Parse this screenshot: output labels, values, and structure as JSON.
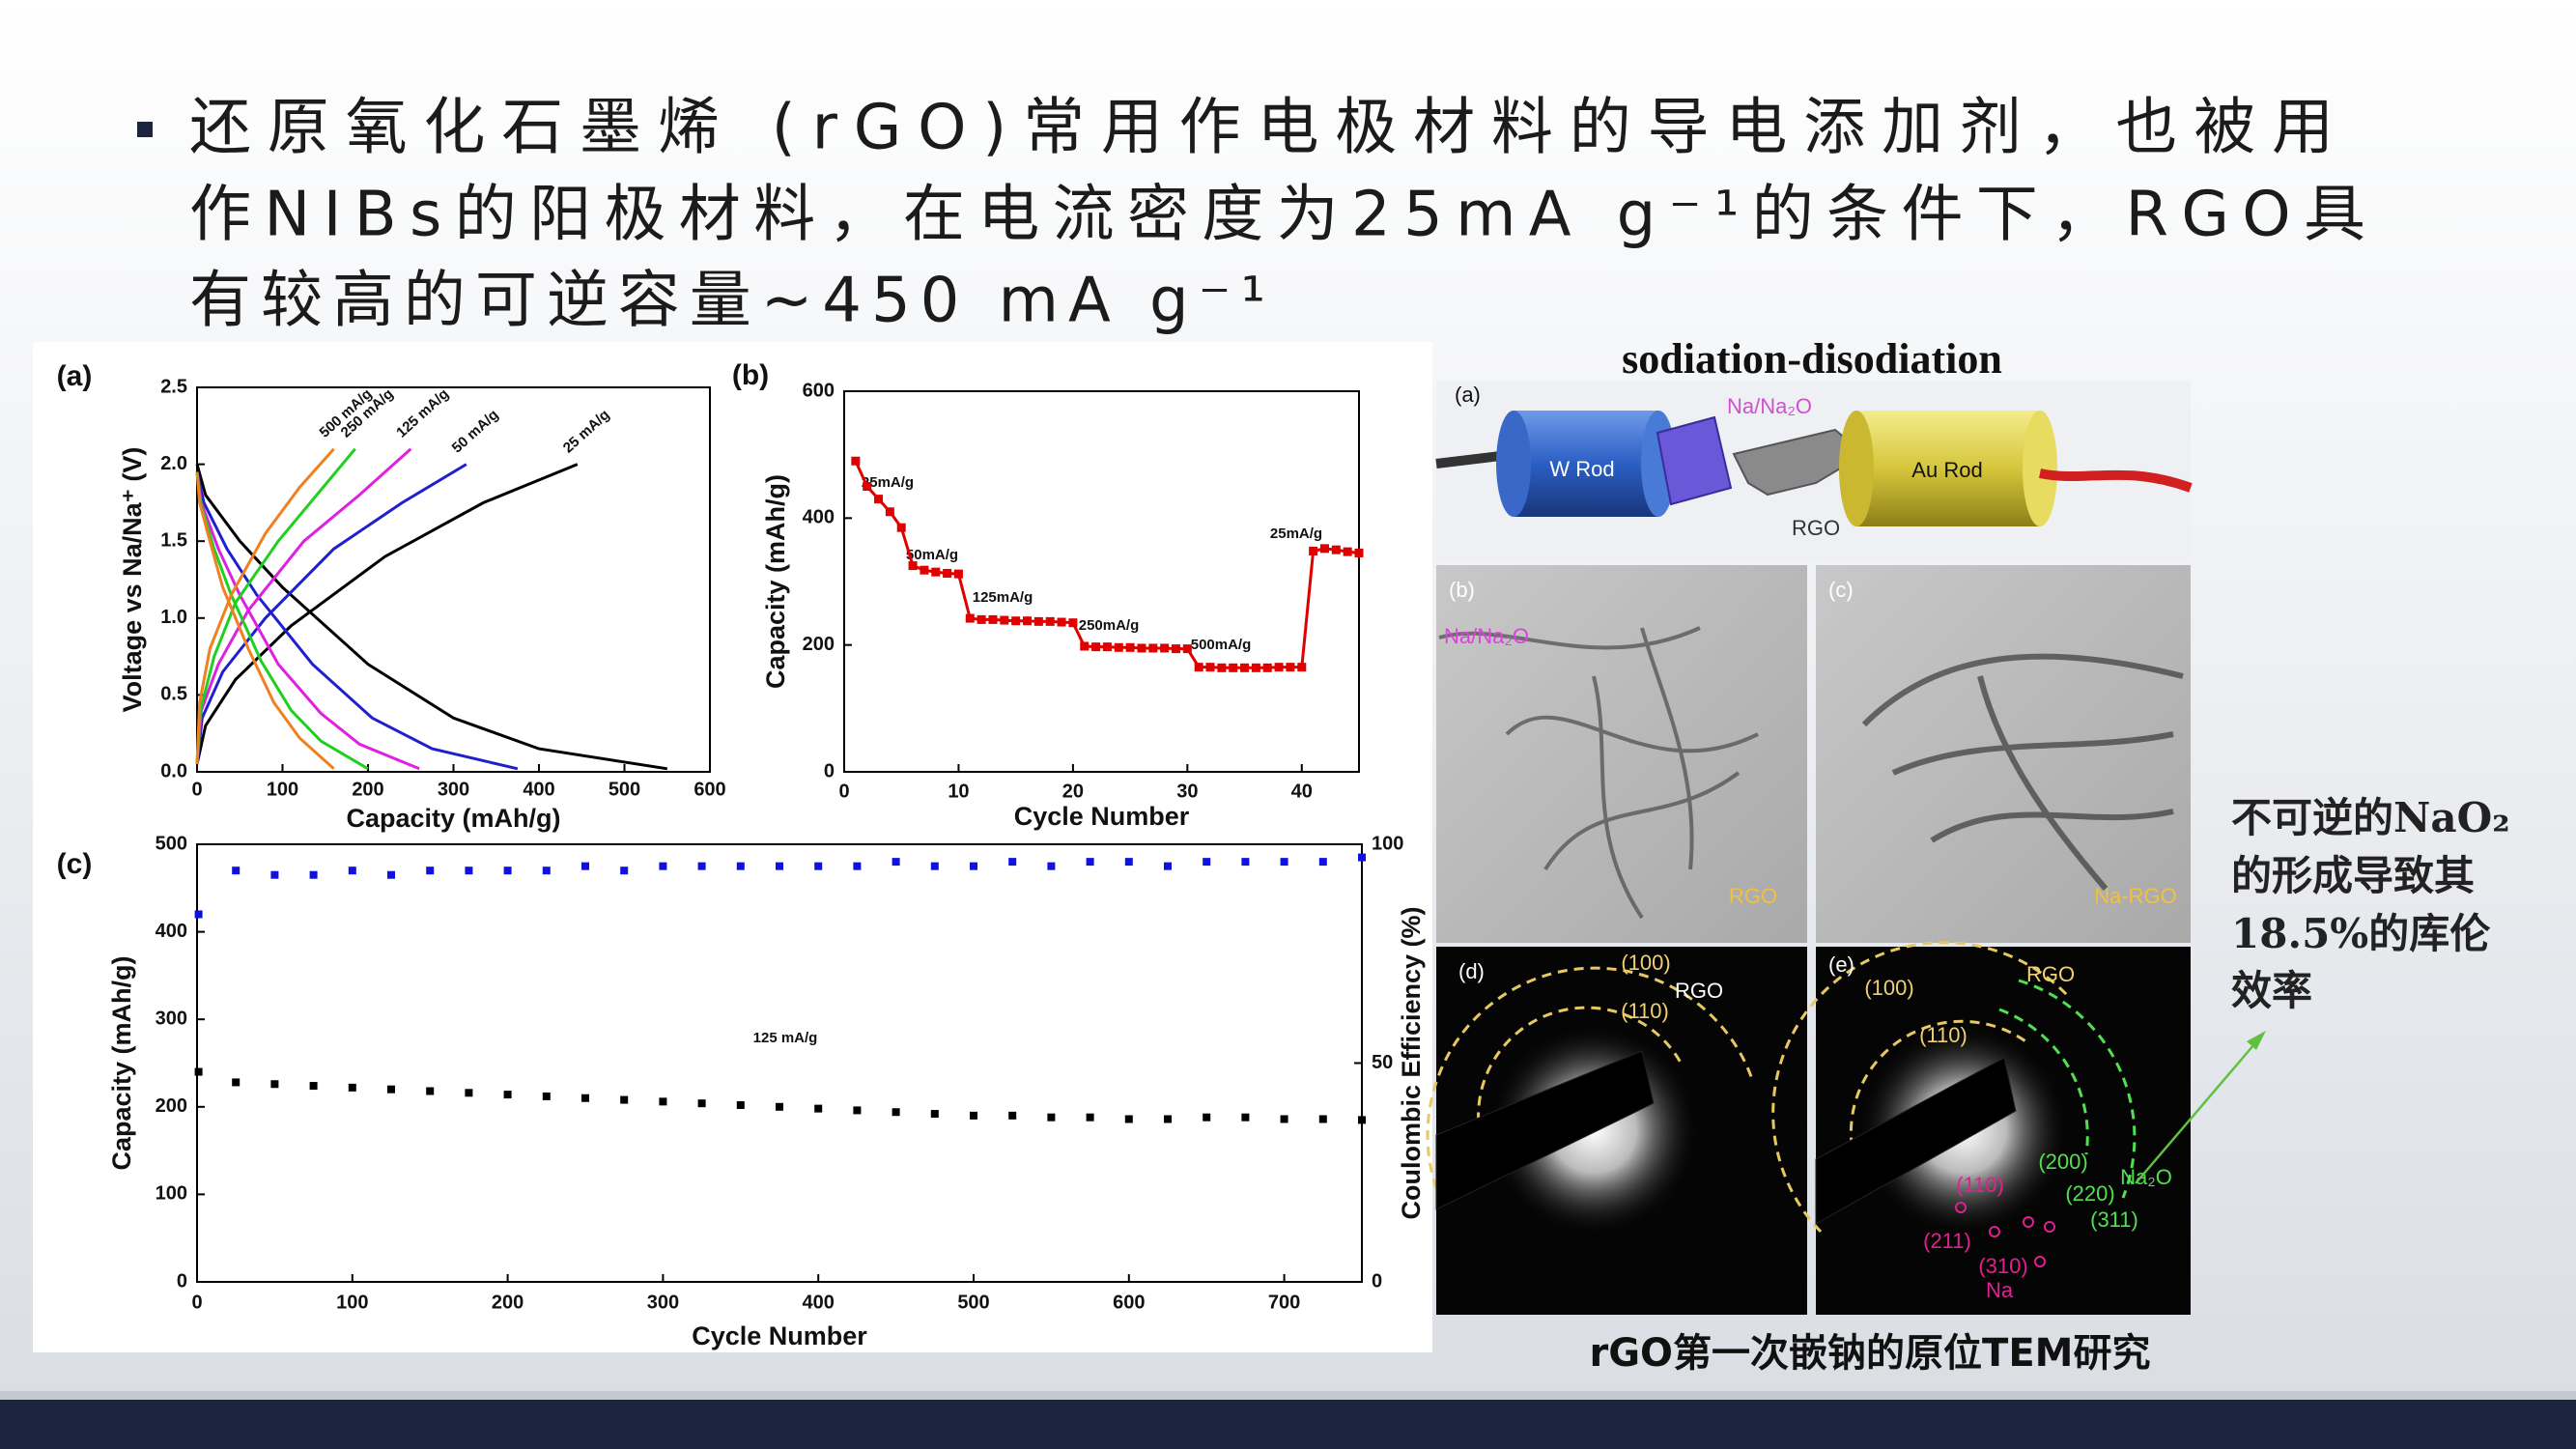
{
  "slide": {
    "bullet_lines": [
      "还原氧化石墨烯 (rGO)常用作电极材料的导电添加剂，也被用",
      "作NIBs的阳极材料，在电流密度为25mA g⁻¹的条件下，RGO具",
      "有较高的可逆容量~450 mA g⁻¹"
    ],
    "note_lines": [
      "不可逆的NaO₂",
      "的形成导致其",
      "18.5%的库伦",
      "效率"
    ]
  },
  "tem_figure": {
    "title": "sodiation-disodiation",
    "caption": "rGO第一次嵌钠的原位TEM研究",
    "panels": [
      {
        "label": "(a)",
        "texts": [
          "Na/Na₂O",
          "W Rod",
          "Au Rod",
          "RGO"
        ]
      },
      {
        "label": "(b)",
        "texts": [
          "Na/Na₂O",
          "RGO"
        ]
      },
      {
        "label": "(c)",
        "texts": [
          "Na-RGO"
        ]
      },
      {
        "label": "(d)",
        "texts": [
          "(100)",
          "RGO",
          "(110)"
        ]
      },
      {
        "label": "(e)",
        "texts": [
          "(100)",
          "RGO",
          "(110)",
          "(200)",
          "(220)",
          "Na₂O",
          "(311)",
          "(110)",
          "(211)",
          "(310)",
          "Na"
        ]
      }
    ]
  },
  "chart_data": [
    {
      "type": "line",
      "panel_label": "(a)",
      "xlabel": "Capacity (mAh/g)",
      "ylabel": "Voltage vs Na/Na⁺ (V)",
      "xlim": [
        0,
        600
      ],
      "xticks": [
        0,
        100,
        200,
        300,
        400,
        500,
        600
      ],
      "ylim": [
        0,
        2.5
      ],
      "yticks": [
        {
          "value": 0,
          "label": "0.0"
        },
        {
          "value": 0.5,
          "label": "0.5"
        },
        {
          "value": 1,
          "label": "1.0"
        },
        {
          "value": 1.5,
          "label": "1.5"
        },
        {
          "value": 2,
          "label": "2.0"
        },
        {
          "value": 2.5,
          "label": "2.5"
        }
      ],
      "series": [
        {
          "name": "25 mA/g",
          "color": "#000000",
          "x": [
            0,
            10,
            50,
            100,
            200,
            300,
            400,
            550,
            null,
            0,
            10,
            45,
            110,
            220,
            335,
            445
          ],
          "values": [
            2.0,
            1.8,
            1.5,
            1.2,
            0.7,
            0.35,
            0.15,
            0.02,
            null,
            0.05,
            0.3,
            0.6,
            0.95,
            1.4,
            1.75,
            2.0
          ]
        },
        {
          "name": "50 mA/g",
          "color": "#1f1fd0",
          "x": [
            0,
            8,
            35,
            70,
            135,
            205,
            275,
            375,
            null,
            0,
            6,
            30,
            80,
            160,
            240,
            315
          ],
          "values": [
            1.95,
            1.75,
            1.45,
            1.15,
            0.7,
            0.35,
            0.15,
            0.02,
            null,
            0.05,
            0.35,
            0.65,
            1.0,
            1.45,
            1.75,
            2.0
          ]
        },
        {
          "name": "125 mA/g",
          "color": "#e020e0",
          "x": [
            0,
            5,
            25,
            50,
            95,
            145,
            190,
            260,
            null,
            0,
            5,
            25,
            60,
            125,
            190,
            250
          ],
          "values": [
            1.95,
            1.75,
            1.45,
            1.15,
            0.7,
            0.38,
            0.18,
            0.02,
            null,
            0.05,
            0.4,
            0.7,
            1.05,
            1.5,
            1.8,
            2.1
          ]
        },
        {
          "name": "250 mA/g",
          "color": "#20d020",
          "x": [
            0,
            4,
            20,
            40,
            75,
            110,
            145,
            200,
            null,
            0,
            4,
            20,
            45,
            95,
            140,
            185
          ],
          "values": [
            1.95,
            1.75,
            1.45,
            1.15,
            0.72,
            0.4,
            0.2,
            0.02,
            null,
            0.05,
            0.4,
            0.75,
            1.1,
            1.5,
            1.8,
            2.1
          ]
        },
        {
          "name": "500 mA/g",
          "color": "#f08020",
          "x": [
            0,
            3,
            15,
            30,
            60,
            90,
            120,
            160,
            null,
            0,
            3,
            15,
            40,
            80,
            120,
            160
          ],
          "values": [
            1.95,
            1.75,
            1.5,
            1.2,
            0.8,
            0.45,
            0.22,
            0.02,
            null,
            0.05,
            0.45,
            0.8,
            1.15,
            1.55,
            1.85,
            2.1
          ]
        }
      ]
    },
    {
      "type": "line",
      "markers": true,
      "panel_label": "(b)",
      "xlabel": "Cycle Number",
      "ylabel": "Capacity (mAh/g)",
      "xlim": [
        0,
        45
      ],
      "xticks": [
        0,
        10,
        20,
        30,
        40
      ],
      "ylim": [
        0,
        600
      ],
      "yticks": [
        0,
        200,
        400,
        600
      ],
      "annotations": [
        "25mA/g",
        "50mA/g",
        "125mA/g",
        "250mA/g",
        "500mA/g",
        "25mA/g"
      ],
      "x": [
        1,
        2,
        3,
        4,
        5,
        6,
        7,
        8,
        9,
        10,
        11,
        12,
        13,
        14,
        15,
        16,
        17,
        18,
        19,
        20,
        21,
        22,
        23,
        24,
        25,
        26,
        27,
        28,
        29,
        30,
        31,
        32,
        33,
        34,
        35,
        36,
        37,
        38,
        39,
        40,
        41,
        42,
        43,
        44,
        45
      ],
      "series": [
        {
          "color": "#e00000",
          "values": [
            490,
            450,
            430,
            410,
            385,
            325,
            318,
            315,
            313,
            312,
            242,
            240,
            240,
            239,
            238,
            238,
            237,
            237,
            236,
            235,
            198,
            197,
            197,
            196,
            196,
            195,
            195,
            195,
            194,
            194,
            165,
            165,
            164,
            164,
            164,
            164,
            164,
            165,
            165,
            165,
            348,
            352,
            350,
            347,
            345
          ]
        }
      ]
    },
    {
      "type": "scatter",
      "panel_label": "(c)",
      "xlabel": "Cycle Number",
      "ylabel": "Capacity (mAh/g)",
      "y2label": "Coulombic Efficiency (%)",
      "xlim": [
        0,
        750
      ],
      "xticks": [
        0,
        100,
        200,
        300,
        400,
        500,
        600,
        700
      ],
      "ylim": [
        0,
        500
      ],
      "yticks": [
        0,
        100,
        200,
        300,
        400,
        500
      ],
      "y2lim": [
        0,
        100
      ],
      "y2ticks": [
        0,
        50,
        100
      ],
      "annotations": [
        "125 mA/g"
      ],
      "x": [
        1,
        25,
        50,
        75,
        100,
        125,
        150,
        175,
        200,
        225,
        250,
        275,
        300,
        325,
        350,
        375,
        400,
        425,
        450,
        475,
        500,
        525,
        550,
        575,
        600,
        625,
        650,
        675,
        700,
        725,
        750
      ],
      "series": [
        {
          "color": "#000000",
          "values": [
            240,
            228,
            226,
            224,
            222,
            220,
            218,
            216,
            214,
            212,
            210,
            208,
            206,
            204,
            202,
            200,
            198,
            196,
            194,
            192,
            190,
            190,
            188,
            188,
            186,
            186,
            188,
            188,
            186,
            186,
            185
          ]
        },
        {
          "color": "#1010e0",
          "axis": "y2",
          "values": [
            84,
            94,
            93,
            93,
            94,
            93,
            94,
            94,
            94,
            94,
            95,
            94,
            95,
            95,
            95,
            95,
            95,
            95,
            96,
            95,
            95,
            96,
            95,
            96,
            96,
            95,
            96,
            96,
            96,
            96,
            97
          ]
        }
      ]
    }
  ]
}
